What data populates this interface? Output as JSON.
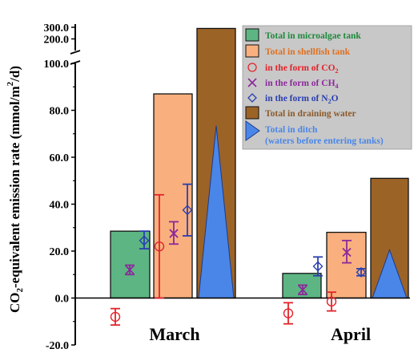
{
  "chart_data": {
    "type": "bar",
    "ylabel_parts": [
      "CO",
      "2",
      "-equivalent emission rate (mmol/m",
      "2",
      "/d)"
    ],
    "categories": [
      "March",
      "April"
    ],
    "y_ticks_lower": [
      "-20.0",
      "0.0",
      "20.0",
      "40.0",
      "60.0",
      "80.0",
      "100.0"
    ],
    "y_ticks_upper": [
      "200.0",
      "300.0"
    ],
    "ylim_lower": [
      -20,
      100
    ],
    "ylim_upper": [
      100,
      300
    ],
    "bar_series": [
      {
        "key": "microalgae",
        "values": [
          28.5,
          10.5
        ],
        "color": "#5db583"
      },
      {
        "key": "shellfish",
        "values": [
          87,
          28
        ],
        "color": "#f9b07e"
      },
      {
        "key": "draining",
        "values": [
          290,
          51
        ],
        "color": "#9c6327"
      }
    ],
    "ditch": {
      "values": [
        73.5,
        20.5
      ],
      "color": "#4a86e8"
    },
    "gas_points": [
      {
        "key": "co2",
        "color": "#e2242b",
        "march": {
          "x": "microalgae",
          "mean": -8,
          "lo": -11.5,
          "hi": -4.5
        },
        "april": {
          "x": "microalgae",
          "mean": -6.5,
          "lo": -11,
          "hi": -2
        }
      },
      {
        "key": "co2b",
        "color": "#e2242b",
        "march": {
          "x": "shellfish",
          "mean": 22,
          "lo": 0,
          "hi": 44
        },
        "april": {
          "x": "shellfish",
          "mean": -1.5,
          "lo": -5.5,
          "hi": 2.5
        }
      },
      {
        "key": "ch4",
        "color": "#8b2a9a",
        "march": {
          "x": "microalgae",
          "mean": 12,
          "lo": 10,
          "hi": 14
        },
        "april": {
          "x": "microalgae",
          "mean": 3.5,
          "lo": 1.5,
          "hi": 5.5
        }
      },
      {
        "key": "ch4b",
        "color": "#8b2a9a",
        "march": {
          "x": "shellfish",
          "mean": 27.5,
          "lo": 23,
          "hi": 32.5
        },
        "april": {
          "x": "shellfish",
          "mean": 19.5,
          "lo": 15,
          "hi": 24.5
        }
      },
      {
        "key": "n2o",
        "color": "#2a3fb0",
        "march": {
          "x": "microalgae",
          "mean": 24.5,
          "lo": 21,
          "hi": 28.5
        },
        "april": {
          "x": "microalgae",
          "mean": 13.5,
          "lo": 9.5,
          "hi": 17.5
        }
      },
      {
        "key": "n2ob",
        "color": "#2a3fb0",
        "march": {
          "x": "shellfish",
          "mean": 37.5,
          "lo": 26.5,
          "hi": 48.5
        },
        "april": {
          "x": "shellfish",
          "mean": 11,
          "lo": 9.5,
          "hi": 12.5
        }
      }
    ],
    "legend": {
      "placement": "top-right",
      "background": "#c8c8c8",
      "entries": [
        {
          "label": "Total in microalgae tank",
          "color": "#1e8a3c",
          "swatch": "#5db583",
          "marker": "box"
        },
        {
          "label": "Total in shellfish tank",
          "color": "#e07020",
          "swatch": "#f9b07e",
          "marker": "box"
        },
        {
          "label_parts": [
            "in the form of CO",
            "2"
          ],
          "color": "#e2242b",
          "marker": "circle"
        },
        {
          "label_parts": [
            "in the form of CH",
            "4"
          ],
          "color": "#8b2a9a",
          "marker": "cross"
        },
        {
          "label_parts": [
            "in the form of N",
            "2",
            "O"
          ],
          "color": "#2a3fb0",
          "marker": "diamond"
        },
        {
          "label": "Total in draining water",
          "color": "#8b5a2b",
          "swatch": "#9c6327",
          "marker": "box"
        },
        {
          "label": "Total in ditch",
          "label2": "(waters before entering tanks)",
          "color": "#4a86e8",
          "swatch": "#4a86e8",
          "marker": "triangle"
        }
      ]
    }
  }
}
